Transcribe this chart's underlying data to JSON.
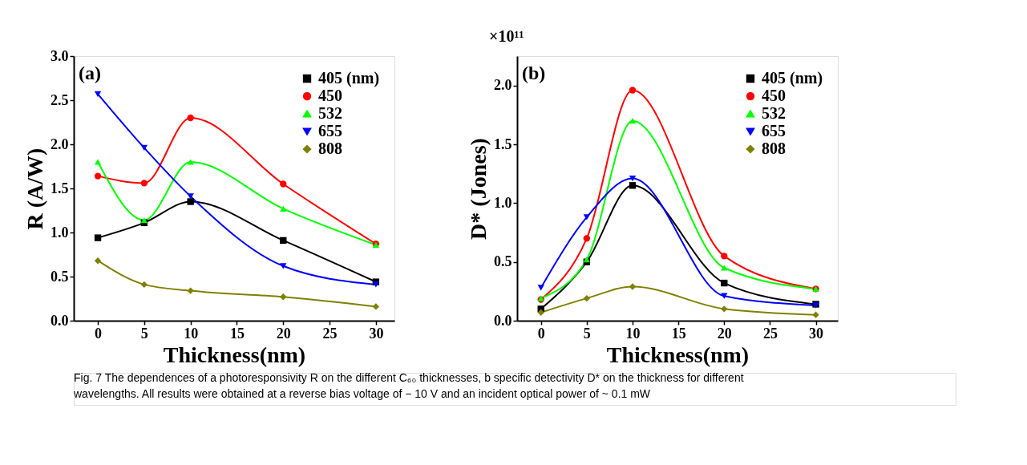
{
  "chart_data": [
    {
      "type": "line",
      "xlabel": "Thickness(nm)",
      "ylabel": "R (A/W)",
      "x": [
        0,
        5,
        10,
        20,
        30
      ],
      "xlim": [
        -2.6,
        32
      ],
      "xticks": [
        0,
        5,
        10,
        15,
        20,
        25,
        30
      ],
      "ylim": [
        0,
        3
      ],
      "yticks": [
        {
          "value": 0,
          "label": "0.0"
        },
        0.5,
        {
          "value": 1,
          "label": "1.0"
        },
        1.5,
        {
          "value": 2,
          "label": "2.0"
        },
        2.5,
        {
          "value": 3,
          "label": "3.0"
        }
      ],
      "series": [
        {
          "name": "405 (nm)",
          "color": "#000000",
          "marker": "square",
          "values": [
            0.94,
            1.11,
            1.35,
            0.91,
            0.44
          ]
        },
        {
          "name": "450",
          "color": "#ff0000",
          "marker": "circle",
          "values": [
            1.64,
            1.56,
            2.3,
            1.55,
            0.87
          ]
        },
        {
          "name": "532",
          "color": "#00ff00",
          "marker": "triangle",
          "values": [
            1.8,
            1.14,
            1.8,
            1.27,
            0.86
          ]
        },
        {
          "name": "655",
          "color": "#0000ff",
          "marker": "triangle-down",
          "values": [
            2.57,
            1.96,
            1.41,
            0.62,
            0.41
          ]
        },
        {
          "name": "808",
          "color": "#808000",
          "marker": "diamond",
          "values": [
            0.68,
            0.41,
            0.34,
            0.27,
            0.16
          ]
        }
      ],
      "legend": "top right",
      "grid": false,
      "annotations": [
        "(a)",
        "Fig. 7  The dependences of a photoresponsivity R on the different C₆₀ thicknesses, b specific detectivity D* on the thickness for different wavelengths. All results were obtained at a reverse bias voltage of − 10 V and an incident optical power of ~ 0.1 mW"
      ]
    },
    {
      "type": "line",
      "xlabel": "Thickness(nm)",
      "ylabel": "D* (Jones)",
      "x": [
        0,
        5,
        10,
        20,
        30
      ],
      "xlim": [
        -2.6,
        32.4
      ],
      "xticks": [
        0,
        5,
        10,
        15,
        20,
        25,
        30
      ],
      "ylim": [
        0,
        2.25
      ],
      "yticks": [
        {
          "value": 0,
          "label": "0.0"
        },
        0.5,
        {
          "value": 1,
          "label": "1.0"
        },
        1.5,
        {
          "value": 2,
          "label": "2.0"
        }
      ],
      "series": [
        {
          "name": "405 (nm)",
          "color": "#000000",
          "marker": "square",
          "values": [
            0.1,
            0.5,
            1.15,
            0.32,
            0.14
          ]
        },
        {
          "name": "450",
          "color": "#ff0000",
          "marker": "circle",
          "values": [
            0.18,
            0.7,
            1.96,
            0.55,
            0.27
          ]
        },
        {
          "name": "532",
          "color": "#00ff00",
          "marker": "triangle",
          "values": [
            0.19,
            0.52,
            1.7,
            0.45,
            0.27
          ]
        },
        {
          "name": "655",
          "color": "#0000ff",
          "marker": "triangle-down",
          "values": [
            0.28,
            0.88,
            1.21,
            0.21,
            0.13
          ]
        },
        {
          "name": "808",
          "color": "#808000",
          "marker": "diamond",
          "values": [
            0.07,
            0.19,
            0.29,
            0.1,
            0.05
          ]
        }
      ],
      "legend": "top right",
      "grid": false,
      "annotations": [
        "(b)",
        "×10¹¹"
      ]
    }
  ]
}
